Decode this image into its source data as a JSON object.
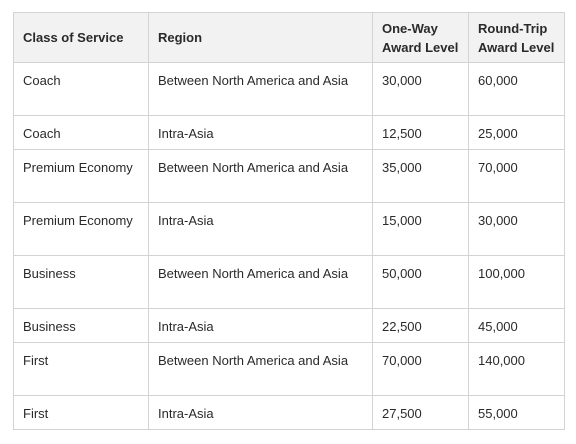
{
  "table": {
    "headers": [
      "Class of Service",
      "Region",
      "One-Way Award Level",
      "Round-Trip Award Level"
    ],
    "rows": [
      {
        "class": "Coach",
        "region": "Between North America and Asia",
        "one_way": "30,000",
        "round_trip": "60,000"
      },
      {
        "class": "Coach",
        "region": "Intra-Asia",
        "one_way": "12,500",
        "round_trip": "25,000"
      },
      {
        "class": "Premium Economy",
        "region": "Between North America and Asia",
        "one_way": "35,000",
        "round_trip": "70,000"
      },
      {
        "class": "Premium Economy",
        "region": "Intra-Asia",
        "one_way": "15,000",
        "round_trip": "30,000"
      },
      {
        "class": "Business",
        "region": "Between North America and Asia",
        "one_way": "50,000",
        "round_trip": "100,000"
      },
      {
        "class": "Business",
        "region": "Intra-Asia",
        "one_way": "22,500",
        "round_trip": "45,000"
      },
      {
        "class": "First",
        "region": "Between North America and Asia",
        "one_way": "70,000",
        "round_trip": "140,000"
      },
      {
        "class": "First",
        "region": "Intra-Asia",
        "one_way": "27,500",
        "round_trip": "55,000"
      }
    ]
  }
}
